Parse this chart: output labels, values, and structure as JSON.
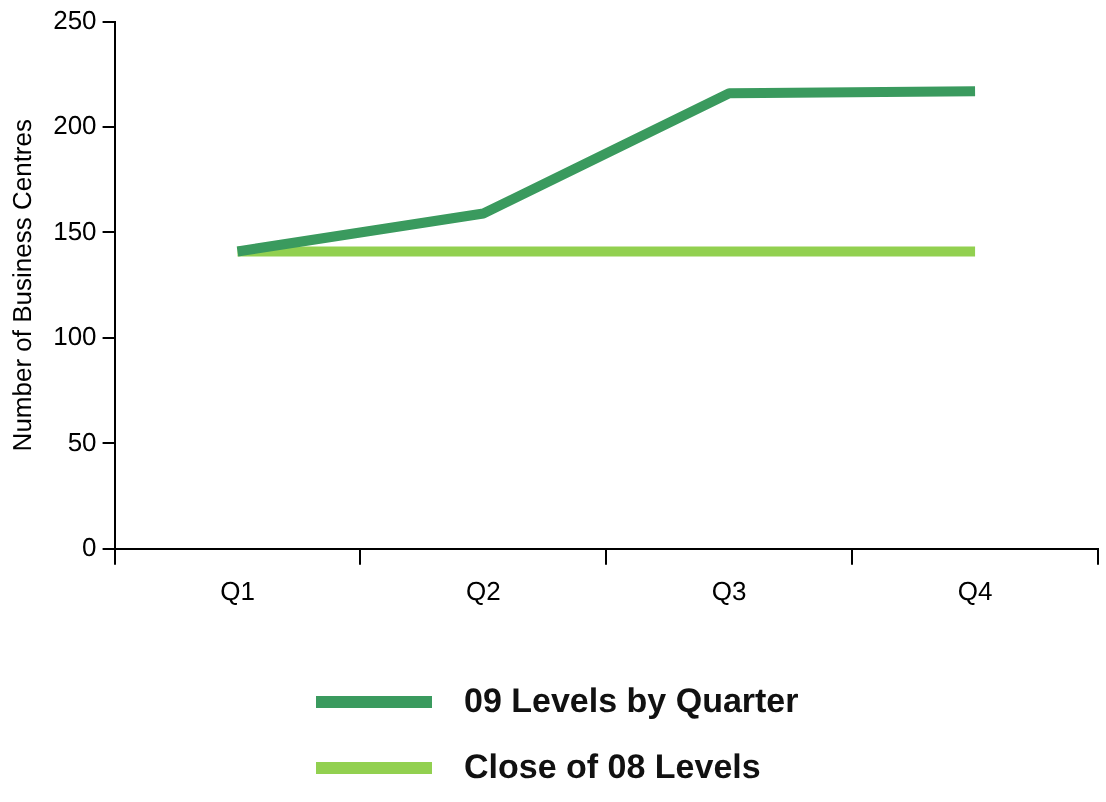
{
  "chart_data": {
    "type": "line",
    "ylabel": "Number of Business Centres",
    "categories": [
      "Q1",
      "Q2",
      "Q3",
      "Q4"
    ],
    "series": [
      {
        "name": "09 Levels by Quarter",
        "color": "#3a9a5e",
        "values": [
          141,
          159,
          216,
          217
        ]
      },
      {
        "name": "Close of 08 Levels",
        "color": "#92d050",
        "values": [
          141,
          141,
          141,
          141
        ]
      }
    ],
    "ylim": [
      0,
      250
    ],
    "yticks": [
      0,
      50,
      100,
      150,
      200,
      250
    ],
    "grid": false,
    "legend": "bottom",
    "marker": "none"
  }
}
